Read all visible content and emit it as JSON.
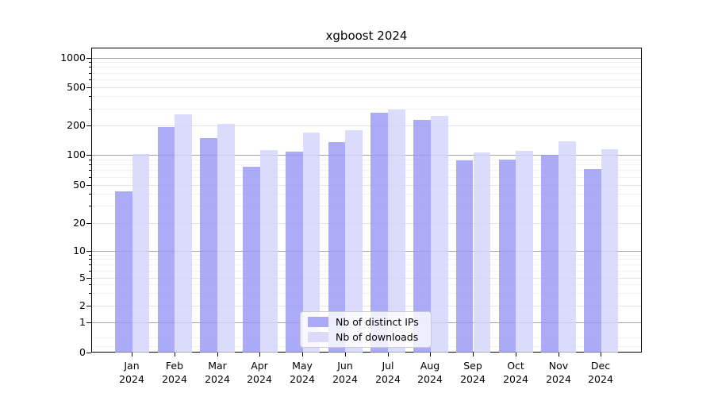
{
  "title": "xgboost 2024",
  "legend": {
    "items": [
      {
        "label": "Nb of distinct IPs",
        "color": "#aaaaf7"
      },
      {
        "label": "Nb of downloads",
        "color": "#dadafa"
      }
    ]
  },
  "chart_data": {
    "type": "bar",
    "title": "xgboost 2024",
    "categories": [
      "Jan 2024",
      "Feb 2024",
      "Mar 2024",
      "Apr 2024",
      "May 2024",
      "Jun 2024",
      "Jul 2024",
      "Aug 2024",
      "Sep 2024",
      "Oct 2024",
      "Nov 2024",
      "Dec 2024"
    ],
    "month_labels": [
      "Jan",
      "Feb",
      "Mar",
      "Apr",
      "May",
      "Jun",
      "Jul",
      "Aug",
      "Sep",
      "Oct",
      "Nov",
      "Dec"
    ],
    "year": "2024",
    "series": [
      {
        "name": "Nb of distinct IPs",
        "color": "#aaaaf7",
        "values": [
          43,
          195,
          151,
          77,
          109,
          137,
          272,
          230,
          89,
          91,
          101,
          72
        ]
      },
      {
        "name": "Nb of downloads",
        "color": "#dadafa",
        "values": [
          103,
          262,
          210,
          114,
          170,
          182,
          295,
          255,
          106,
          111,
          140,
          115
        ]
      }
    ],
    "yscale": "symlog",
    "y_ticks": [
      0,
      1,
      2,
      5,
      10,
      20,
      50,
      100,
      200,
      500,
      1000
    ],
    "y_tick_labels": [
      "0",
      "1",
      "2",
      "5",
      "10",
      "20",
      "50",
      "100",
      "200",
      "500",
      "1000"
    ],
    "ylim": [
      0,
      1300
    ],
    "grid": true,
    "legend_position": "lower center"
  }
}
